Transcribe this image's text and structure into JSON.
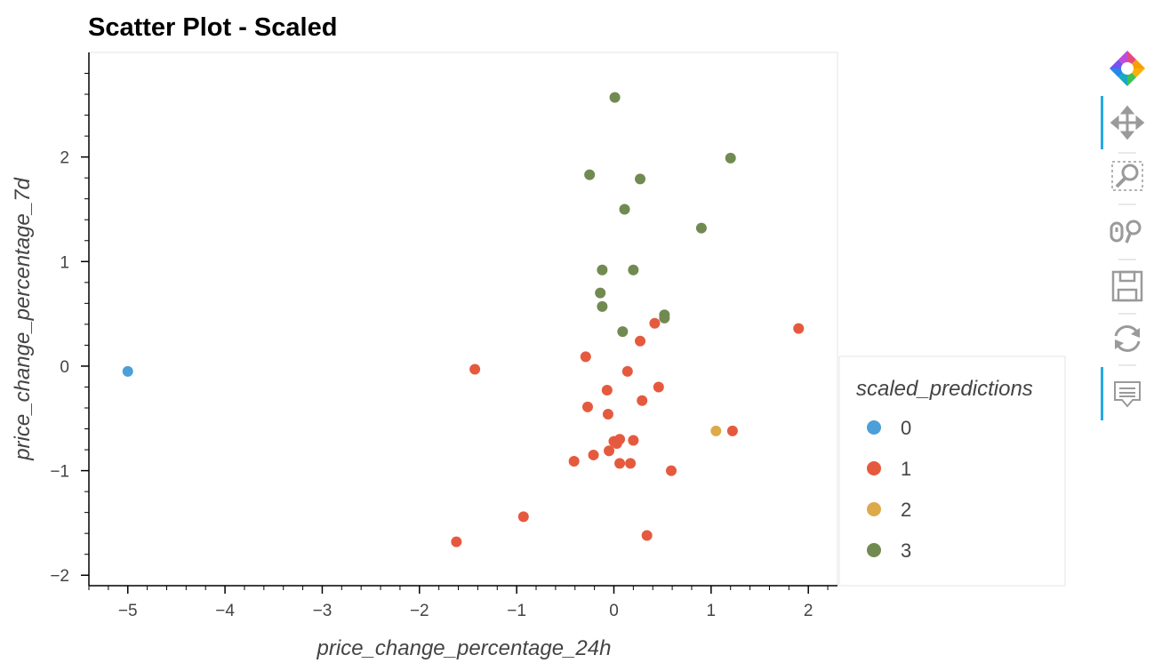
{
  "chart_data": {
    "type": "scatter",
    "title": "Scatter Plot - Scaled",
    "xlabel": "price_change_percentage_24h",
    "ylabel": "price_change_percentage_7d",
    "xlim": [
      -5.4,
      2.3
    ],
    "ylim": [
      -2.1,
      3.0
    ],
    "xticks": [
      -5,
      -4,
      -3,
      -2,
      -1,
      0,
      1,
      2
    ],
    "yticks": [
      -2,
      -1,
      0,
      1,
      2
    ],
    "grid": false,
    "legend": {
      "title": "scaled_predictions",
      "placement": "right"
    },
    "series": [
      {
        "name": "0",
        "color": "#4c9fd8",
        "points": [
          [
            -5.0,
            -0.05
          ]
        ]
      },
      {
        "name": "1",
        "color": "#e55a3e",
        "points": [
          [
            1.9,
            0.36
          ],
          [
            -1.43,
            -0.03
          ],
          [
            -0.29,
            0.09
          ],
          [
            0.27,
            0.24
          ],
          [
            0.42,
            0.41
          ],
          [
            0.14,
            -0.05
          ],
          [
            -0.07,
            -0.23
          ],
          [
            0.46,
            -0.2
          ],
          [
            0.29,
            -0.33
          ],
          [
            -0.27,
            -0.39
          ],
          [
            -0.06,
            -0.46
          ],
          [
            1.22,
            -0.62
          ],
          [
            0.0,
            -0.72
          ],
          [
            0.06,
            -0.7
          ],
          [
            0.2,
            -0.71
          ],
          [
            0.03,
            -0.74
          ],
          [
            -0.05,
            -0.81
          ],
          [
            -0.21,
            -0.85
          ],
          [
            -0.41,
            -0.91
          ],
          [
            0.06,
            -0.93
          ],
          [
            0.17,
            -0.93
          ],
          [
            0.59,
            -1.0
          ],
          [
            -0.93,
            -1.44
          ],
          [
            -1.62,
            -1.68
          ],
          [
            0.34,
            -1.62
          ]
        ]
      },
      {
        "name": "2",
        "color": "#ddaa4a",
        "points": [
          [
            1.05,
            -0.62
          ]
        ]
      },
      {
        "name": "3",
        "color": "#718a51",
        "points": [
          [
            0.01,
            2.57
          ],
          [
            1.2,
            1.99
          ],
          [
            -0.25,
            1.83
          ],
          [
            0.27,
            1.79
          ],
          [
            0.11,
            1.5
          ],
          [
            0.9,
            1.32
          ],
          [
            -0.12,
            0.92
          ],
          [
            0.2,
            0.92
          ],
          [
            -0.14,
            0.7
          ],
          [
            -0.12,
            0.57
          ],
          [
            0.52,
            0.49
          ],
          [
            0.52,
            0.46
          ],
          [
            0.09,
            0.33
          ]
        ]
      }
    ]
  },
  "toolbar": {
    "icons": [
      "bokeh-logo-icon",
      "pan-icon",
      "box-zoom-icon",
      "wheel-zoom-icon",
      "save-icon",
      "reset-icon",
      "hover-icon"
    ]
  }
}
